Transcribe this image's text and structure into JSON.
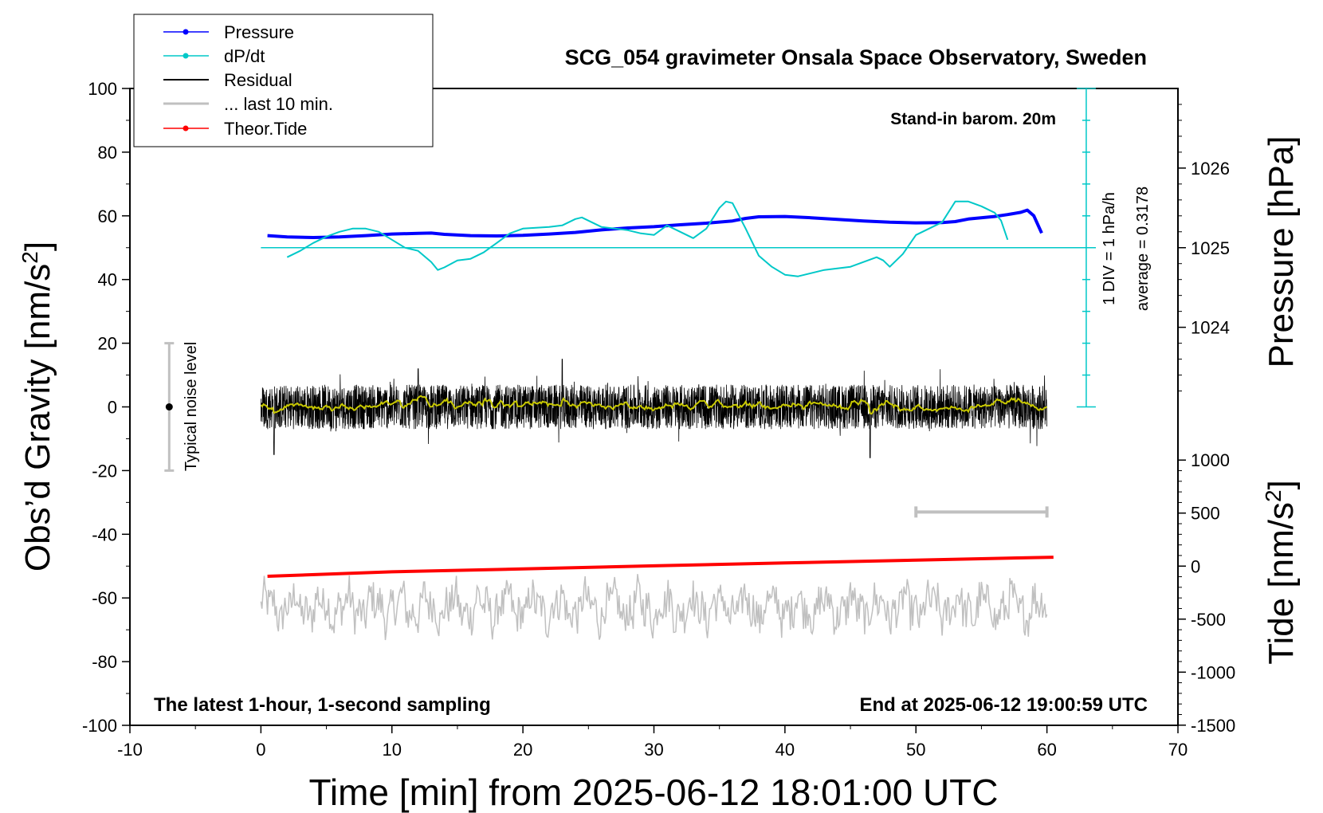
{
  "chart_data": {
    "type": "line",
    "title": "SCG_054 gravimeter Onsala Space Observatory, Sweden",
    "xlabel": "Time [min] from 2025-06-12 18:01:00 UTC",
    "ylabel_left": "Obs’d Gravity [nm/s",
    "ylabel_left_sup": "2",
    "ylabel_left_end": "]",
    "ylabel_right_top": "Pressure [hPa]",
    "ylabel_right_bottom": "Tide [nm/s",
    "ylabel_right_bottom_sup": "2",
    "ylabel_right_bottom_end": "]",
    "xlim": [
      -10,
      70
    ],
    "ylim": [
      -100,
      100
    ],
    "x_ticks": [
      "-10",
      "0",
      "10",
      "20",
      "30",
      "40",
      "50",
      "60",
      "70"
    ],
    "y_ticks": [
      "100",
      "80",
      "60",
      "40",
      "20",
      "0",
      "-20",
      "-40",
      "-60",
      "-80",
      "-100"
    ],
    "pressure_axis": {
      "ticks": [
        "1026",
        "1025",
        "1024"
      ],
      "values": [
        1026,
        1025,
        1024
      ],
      "gravity_at_1025": 50,
      "gravity_per_hPa": 25
    },
    "tide_axis": {
      "ticks": [
        "1000",
        "500",
        "0",
        "-500",
        "-1000",
        "-1500"
      ],
      "values": [
        1000,
        500,
        0,
        -500,
        -1000,
        -1500
      ],
      "gravity_at_0": -50,
      "gravity_per_unit": 0.0333
    },
    "legend": {
      "placement": "top-left",
      "entries": [
        {
          "name": "Pressure",
          "color": "#0000ff",
          "marker": true
        },
        {
          "name": "dP/dt",
          "color": "#00c8c8",
          "marker": true
        },
        {
          "name": "Residual",
          "color": "#000000",
          "marker": false
        },
        {
          "name": "... last 10 min.",
          "color": "#c0c0c0",
          "marker": false
        },
        {
          "name": "Theor.Tide",
          "color": "#ff0000",
          "marker": true
        }
      ]
    },
    "annotations": {
      "barometer": "Stand-in barom. 20m",
      "div_label": "1 DIV = 1 hPa/h",
      "average_label": "average = 0.3178",
      "noise_label": "Typical noise level",
      "bottom_left": "The latest 1-hour, 1-second sampling",
      "bottom_right": "End at 2025-06-12 19:00:59 UTC"
    },
    "noise_bar": {
      "x": -7,
      "y": 0,
      "ymin": -20,
      "ymax": 20
    },
    "last10_bar": {
      "xmin": 50,
      "xmax": 60,
      "y": -33
    },
    "dpdt_scale": {
      "x": 63,
      "baseline": 50,
      "ymin": 0,
      "ymax": 100,
      "div_values": [
        0,
        10,
        20,
        30,
        40,
        50,
        60,
        70,
        80,
        90,
        100
      ]
    },
    "series": [
      {
        "name": "Pressure",
        "color": "#0000ff",
        "points": [
          [
            0.5,
            53.8
          ],
          [
            2,
            53.4
          ],
          [
            4,
            53.2
          ],
          [
            6,
            53.4
          ],
          [
            8,
            53.8
          ],
          [
            10,
            54.3
          ],
          [
            12,
            54.5
          ],
          [
            13,
            54.6
          ],
          [
            14,
            54.2
          ],
          [
            16,
            53.8
          ],
          [
            18,
            53.7
          ],
          [
            20,
            53.9
          ],
          [
            22,
            54.3
          ],
          [
            24,
            54.8
          ],
          [
            26,
            55.6
          ],
          [
            28,
            56.2
          ],
          [
            30,
            56.6
          ],
          [
            32,
            57.2
          ],
          [
            34,
            57.7
          ],
          [
            36,
            58.4
          ],
          [
            37,
            59.2
          ],
          [
            38,
            59.7
          ],
          [
            40,
            59.8
          ],
          [
            42,
            59.4
          ],
          [
            44,
            58.9
          ],
          [
            46,
            58.4
          ],
          [
            48,
            58.0
          ],
          [
            50,
            57.8
          ],
          [
            52,
            57.9
          ],
          [
            53,
            58.2
          ],
          [
            54,
            59.0
          ],
          [
            56,
            59.8
          ],
          [
            57,
            60.4
          ],
          [
            58,
            61.1
          ],
          [
            58.5,
            61.8
          ],
          [
            59,
            60.0
          ],
          [
            59.6,
            54.6
          ]
        ]
      },
      {
        "name": "dP/dt",
        "color": "#00c8c8",
        "points": [
          [
            2,
            47.0
          ],
          [
            3,
            49.0
          ],
          [
            4,
            51.5
          ],
          [
            5,
            53.5
          ],
          [
            6,
            55.0
          ],
          [
            7,
            56.0
          ],
          [
            8,
            56.0
          ],
          [
            9,
            55.0
          ],
          [
            10,
            52.5
          ],
          [
            11,
            50.0
          ],
          [
            12,
            49.0
          ],
          [
            13,
            45.5
          ],
          [
            13.5,
            43.0
          ],
          [
            14,
            43.8
          ],
          [
            15,
            46.0
          ],
          [
            16,
            46.5
          ],
          [
            17,
            48.5
          ],
          [
            18,
            51.5
          ],
          [
            19,
            54.5
          ],
          [
            20,
            56.0
          ],
          [
            22,
            56.5
          ],
          [
            23,
            57.0
          ],
          [
            24,
            59.0
          ],
          [
            24.5,
            59.5
          ],
          [
            25,
            58.5
          ],
          [
            26,
            56.5
          ],
          [
            28,
            55.5
          ],
          [
            29,
            54.5
          ],
          [
            30,
            54.0
          ],
          [
            31,
            57.0
          ],
          [
            32,
            55.0
          ],
          [
            33,
            53.0
          ],
          [
            34,
            56.0
          ],
          [
            35,
            62.5
          ],
          [
            35.5,
            64.5
          ],
          [
            36,
            64.0
          ],
          [
            37,
            56.0
          ],
          [
            38,
            47.5
          ],
          [
            39,
            44.0
          ],
          [
            40,
            41.5
          ],
          [
            41,
            41.0
          ],
          [
            42,
            42.0
          ],
          [
            43,
            43.0
          ],
          [
            44,
            43.5
          ],
          [
            45,
            44.0
          ],
          [
            46,
            45.5
          ],
          [
            47,
            47.0
          ],
          [
            47.5,
            46.0
          ],
          [
            48,
            44.0
          ],
          [
            49,
            48.0
          ],
          [
            50,
            54.0
          ],
          [
            51,
            56.0
          ],
          [
            52,
            58.0
          ],
          [
            53,
            64.5
          ],
          [
            54,
            64.5
          ],
          [
            55,
            63.0
          ],
          [
            56,
            61.0
          ],
          [
            56.5,
            58.5
          ],
          [
            57,
            52.5
          ]
        ]
      },
      {
        "name": "Theor.Tide",
        "color": "#ff0000",
        "points": [
          [
            0.5,
            -53.2
          ],
          [
            10,
            -51.8
          ],
          [
            20,
            -50.9
          ],
          [
            30,
            -49.9
          ],
          [
            40,
            -49.0
          ],
          [
            50,
            -48.1
          ],
          [
            60.5,
            -47.2
          ]
        ]
      }
    ],
    "residual": {
      "color": "#000000",
      "smooth_color": "#c8c800",
      "xmin": 0,
      "xmax": 60,
      "amplitude": 7,
      "peak_examples": [
        [
          23,
          15
        ],
        [
          12,
          12
        ],
        [
          46.5,
          -16
        ],
        [
          1,
          -15
        ]
      ]
    },
    "last10": {
      "color": "#c0c0c0",
      "xmin": 0,
      "xmax": 60,
      "center": -63,
      "amplitude": 6,
      "range": [
        -75,
        -48
      ]
    }
  }
}
